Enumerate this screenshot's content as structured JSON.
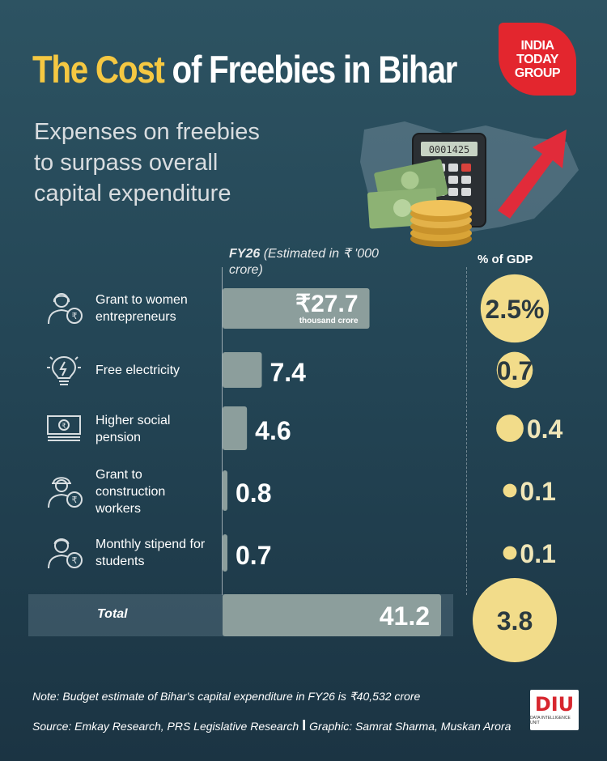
{
  "header": {
    "title_highlight": "The Cost",
    "title_rest": "of Freebies in Bihar",
    "subtitle": "Expenses on freebies to surpass overall capital expenditure",
    "logo_lines": [
      "INDIA",
      "TODAY",
      "GROUP"
    ]
  },
  "columns": {
    "fy_label": "FY26",
    "fy_unit": "(Estimated in ₹ '000 crore)",
    "gdp_label": "% of GDP"
  },
  "colors": {
    "bar": "#8c9e9c",
    "bubble": "#f2dc8a",
    "title_accent": "#f5c842",
    "background": "#244656"
  },
  "icons": [
    "woman-entrepreneur-icon",
    "light-bulb-icon",
    "banknote-icon",
    "construction-worker-icon",
    "student-icon"
  ],
  "chart_data": {
    "type": "bar",
    "categories": [
      "Grant to women entrepreneurs",
      "Free electricity",
      "Higher social pension",
      "Grant to construction workers",
      "Monthly stipend for students"
    ],
    "series": [
      {
        "values": [
          27.7,
          7.4,
          4.6,
          0.8,
          0.7
        ]
      }
    ],
    "gdp_share": [
      2.5,
      0.7,
      0.4,
      0.1,
      0.1
    ],
    "value_labels": [
      "₹27.7",
      "7.4",
      "4.6",
      "0.8",
      "0.7"
    ],
    "first_value_unit": "thousand crore",
    "gdp_labels": [
      "2.5%",
      "0.7",
      "0.4",
      "0.1",
      "0.1"
    ],
    "total": {
      "label": "Total",
      "value": 41.2,
      "value_label": "41.2",
      "gdp_share": 3.8,
      "gdp_label": "3.8"
    }
  },
  "footer": {
    "note": "Note: Budget estimate of Bihar's capital expenditure in FY26 is ₹40,532 crore",
    "source": "Source: Emkay Research, PRS Legislative Research",
    "separator": "I",
    "graphic": "Graphic: Samrat Sharma, Muskan Arora",
    "diu_mark": "DIU",
    "diu_text": "DATA INTELLIGENCE UNIT"
  }
}
